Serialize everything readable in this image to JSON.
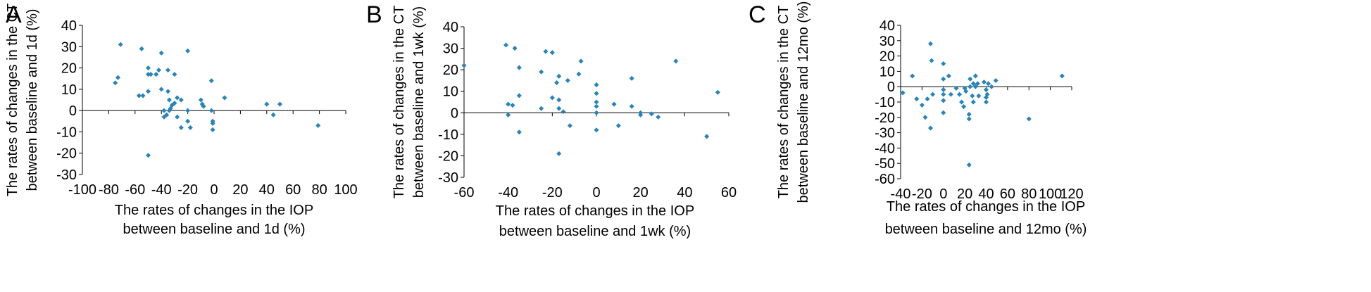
{
  "chart_data": [
    {
      "panel": "A",
      "type": "scatter",
      "xlabel": [
        "The rates of changes in the IOP",
        "between baseline and 1d (%)"
      ],
      "ylabel": [
        "The rates of changes in the CT",
        "between baseline and 1d (%)"
      ],
      "xlim": [
        -100,
        100
      ],
      "ylim": [
        -30,
        40
      ],
      "xticks": [
        "-100",
        "-80",
        "-60",
        "-40",
        "-20",
        "0",
        "20",
        "40",
        "60",
        "80",
        "100"
      ],
      "yticks": [
        "-30",
        "-20",
        "-10",
        "0",
        "10",
        "20",
        "30",
        "40"
      ],
      "points": [
        [
          -71,
          31
        ],
        [
          -55,
          29
        ],
        [
          -20,
          28
        ],
        [
          -40,
          27
        ],
        [
          -35,
          19
        ],
        [
          -50,
          20
        ],
        [
          -48,
          17
        ],
        [
          -44,
          17
        ],
        [
          -42,
          19
        ],
        [
          -30,
          17
        ],
        [
          -75,
          13
        ],
        [
          -73,
          15.5
        ],
        [
          -50,
          17
        ],
        [
          -2,
          14
        ],
        [
          -57,
          7
        ],
        [
          -54,
          7
        ],
        [
          -50,
          9
        ],
        [
          -40,
          10
        ],
        [
          -35,
          9
        ],
        [
          -28,
          6
        ],
        [
          -25,
          5
        ],
        [
          -34,
          5
        ],
        [
          -32,
          2.5
        ],
        [
          -30,
          3.5
        ],
        [
          -10,
          5
        ],
        [
          -9,
          3
        ],
        [
          -8,
          2
        ],
        [
          8,
          6
        ],
        [
          -50,
          -21
        ],
        [
          -38,
          0
        ],
        [
          -36,
          -2
        ],
        [
          -33,
          1
        ],
        [
          -28,
          -3
        ],
        [
          -20,
          -5
        ],
        [
          -18,
          -8
        ],
        [
          -38,
          -3
        ],
        [
          -34,
          0
        ],
        [
          -25,
          -8
        ],
        [
          -1,
          -5
        ],
        [
          -1,
          -6
        ],
        [
          -1,
          -9
        ],
        [
          -2,
          0
        ],
        [
          -20,
          0
        ],
        [
          40,
          3
        ],
        [
          45,
          -2
        ],
        [
          50,
          3
        ],
        [
          79,
          -7
        ]
      ]
    },
    {
      "panel": "B",
      "type": "scatter",
      "xlabel": [
        "The rates of changes in the IOP",
        "between baseline and 1wk (%)"
      ],
      "ylabel": [
        "The rates of changes in the CT",
        "between baseline and 1wk (%)"
      ],
      "xlim": [
        -60,
        60
      ],
      "ylim": [
        -30,
        40
      ],
      "xticks": [
        "-60",
        "-40",
        "-20",
        "0",
        "20",
        "40",
        "60"
      ],
      "yticks": [
        "-30",
        "-20",
        "-10",
        "0",
        "10",
        "20",
        "30",
        "40"
      ],
      "points": [
        [
          -60,
          22
        ],
        [
          -41,
          31.5
        ],
        [
          -37,
          30
        ],
        [
          -35,
          21
        ],
        [
          -25,
          19
        ],
        [
          -23,
          28.5
        ],
        [
          -20,
          28
        ],
        [
          -18,
          14
        ],
        [
          -17,
          17
        ],
        [
          -13,
          15
        ],
        [
          -8,
          18
        ],
        [
          -7,
          24
        ],
        [
          -40,
          4
        ],
        [
          -38,
          3.5
        ],
        [
          -35,
          8
        ],
        [
          -25,
          2
        ],
        [
          -20,
          7
        ],
        [
          -17,
          6
        ],
        [
          -17,
          2
        ],
        [
          -15,
          0.5
        ],
        [
          -12,
          -6
        ],
        [
          -40,
          -1
        ],
        [
          -35,
          -9
        ],
        [
          -17,
          -19
        ],
        [
          0,
          13
        ],
        [
          0,
          9
        ],
        [
          0,
          5
        ],
        [
          0,
          3
        ],
        [
          0,
          0
        ],
        [
          0,
          -8
        ],
        [
          8,
          4
        ],
        [
          10,
          -6
        ],
        [
          16,
          16
        ],
        [
          16,
          3
        ],
        [
          20,
          0
        ],
        [
          20,
          -1
        ],
        [
          25,
          -0.5
        ],
        [
          28,
          -2
        ],
        [
          36,
          24
        ],
        [
          50,
          -11
        ],
        [
          55,
          9.5
        ]
      ]
    },
    {
      "panel": "C",
      "type": "scatter",
      "xlabel": [
        "The rates of changes in the IOP",
        "between baseline and 12mo (%)"
      ],
      "ylabel": [
        "The rates of changes in the CT",
        "between baseline and 12mo (%)"
      ],
      "xlim": [
        -40,
        120
      ],
      "ylim": [
        -60,
        40
      ],
      "xticks": [
        "-40",
        "-20",
        "0",
        "20",
        "40",
        "60",
        "80",
        "100",
        "120"
      ],
      "yticks": [
        "-60",
        "-50",
        "-40",
        "-30",
        "-20",
        "-10",
        "0",
        "10",
        "20",
        "30",
        "40"
      ],
      "points": [
        [
          -38,
          -4
        ],
        [
          -29,
          7
        ],
        [
          -25,
          -8
        ],
        [
          -20,
          -12
        ],
        [
          -17,
          -20
        ],
        [
          -15,
          -8
        ],
        [
          -12,
          -27
        ],
        [
          -12,
          28
        ],
        [
          -11,
          17
        ],
        [
          -10,
          -5
        ],
        [
          0,
          15
        ],
        [
          0,
          5
        ],
        [
          0,
          -2
        ],
        [
          0,
          -5
        ],
        [
          0,
          -9
        ],
        [
          0,
          -17
        ],
        [
          5,
          7
        ],
        [
          7,
          -5
        ],
        [
          12,
          -1
        ],
        [
          15,
          -5
        ],
        [
          17,
          -10
        ],
        [
          19,
          -13
        ],
        [
          20,
          -1
        ],
        [
          21,
          -3
        ],
        [
          24,
          -18
        ],
        [
          24,
          -21
        ],
        [
          24,
          -51
        ],
        [
          25,
          5
        ],
        [
          25,
          0
        ],
        [
          27,
          -6
        ],
        [
          28,
          2
        ],
        [
          28,
          -10
        ],
        [
          30,
          7
        ],
        [
          30,
          0
        ],
        [
          32,
          2
        ],
        [
          33,
          -6
        ],
        [
          38,
          3
        ],
        [
          40,
          -2
        ],
        [
          40,
          -7
        ],
        [
          40,
          -10
        ],
        [
          41,
          -5
        ],
        [
          42,
          2
        ],
        [
          45,
          0
        ],
        [
          49,
          4
        ],
        [
          80,
          -21
        ],
        [
          111,
          7
        ]
      ]
    }
  ],
  "colors": {
    "point": "#2a84b5",
    "axis": "#000000"
  }
}
